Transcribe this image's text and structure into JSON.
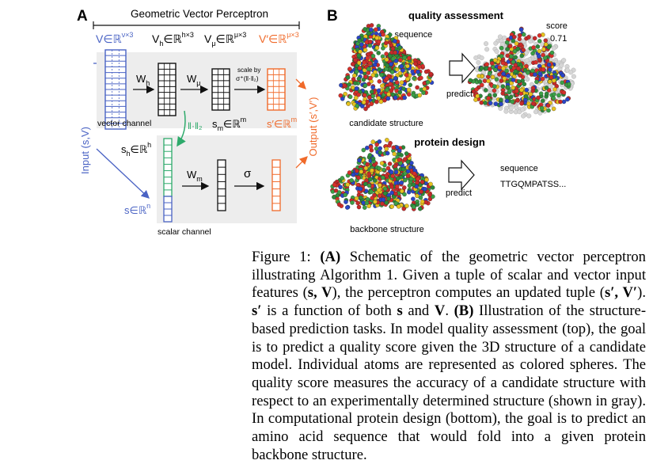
{
  "panel_a": {
    "letter": "A",
    "title": "Geometric Vector Perceptron",
    "v_in": "V∈ℝ",
    "v_in_sup": "ν×3",
    "v_h": "V",
    "v_h_sub": "h",
    "v_h_rest": "∈ℝ",
    "v_h_sup": "h×3",
    "v_mu": "V",
    "v_mu_sub": "μ",
    "v_mu_rest": "∈ℝ",
    "v_mu_sup": "μ×3",
    "v_out": "V′∈ℝ",
    "v_out_sup": "μ×3",
    "w_h": "W",
    "w_h_sub": "h",
    "w_mu": "W",
    "w_mu_sub": "μ",
    "scale_line1": "scale by",
    "scale_line2": "σ⁺(‖·‖₂)",
    "vector_channel": "vector channel",
    "norm_label": "‖·‖₂",
    "s_m": "s",
    "s_m_sub": "m",
    "s_m_rest": "∈ℝ",
    "s_m_sup": "m",
    "s_out": "s′∈ℝ",
    "s_out_sup": "m",
    "s_h": "s",
    "s_h_sub": "h",
    "s_h_rest": "∈ℝ",
    "s_h_sup": "h",
    "s_in": "s∈ℝ",
    "s_in_sup": "n",
    "w_m": "W",
    "w_m_sub": "m",
    "sigma": "σ",
    "scalar_channel": "scalar channel",
    "input_label": "Input (s,V)",
    "output_label": "Output (s′,V′)"
  },
  "panel_b": {
    "letter": "B",
    "qa_title": "quality assessment",
    "plus_sequence": "+ sequence",
    "score_label": "score",
    "score_value": "0.71",
    "predict_1": "predict",
    "candidate_label": "candidate structure",
    "pd_title": "protein design",
    "sequence_label": "sequence",
    "sequence_value": "TTGQMPATSS...",
    "predict_2": "predict",
    "backbone_label": "backbone structure"
  },
  "colors": {
    "blue": "#4a63c4",
    "green": "#2eaa6b",
    "orange": "#f06a2a",
    "gray_panel": "#ededed"
  },
  "caption": {
    "fig_label": "Figure 1:",
    "a_tag": "(A)",
    "text_1": " Schematic of the geometric vector perceptron illustrating Algorithm 1. Given a tuple of scalar and vector input features (",
    "tuple_in": "s, V",
    "text_2": "), the perceptron computes an updated tuple (",
    "tuple_out": "s′, V′",
    "text_3": "). ",
    "s_prime": "s′",
    "text_4": " is a function of both ",
    "s_bold": "s",
    "text_5": " and ",
    "v_bold": "V",
    "text_6": ". ",
    "b_tag": "(B)",
    "text_7": " Illustration of the structure-based prediction tasks. In model quality assessment (top), the goal is to predict a quality score given the 3D structure of a candidate model. Individual atoms are represented as colored spheres. The quality score measures the accuracy of a candidate structure with respect to an experimentally determined structure (shown in gray). In computational protein design (bottom), the goal is to predict an amino acid sequence that would fold into a given protein backbone structure."
  }
}
